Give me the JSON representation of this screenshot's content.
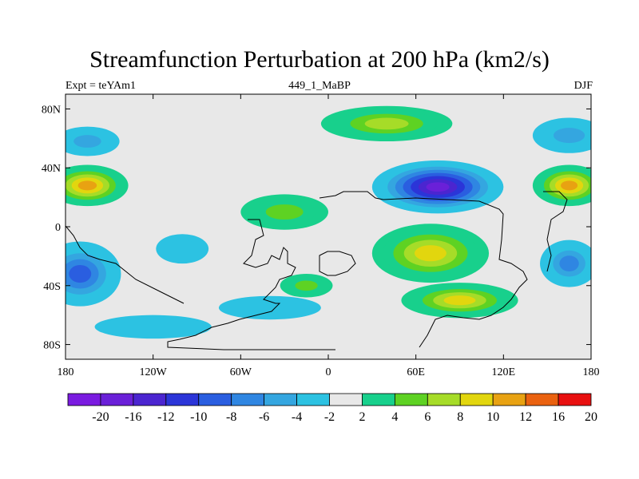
{
  "title": "Streamfunction Perturbation at 200 hPa (km2/s)",
  "subtitle": {
    "left": "Expt = teYAm1",
    "center": "449_1_MaBP",
    "right": "DJF"
  },
  "map": {
    "lon_range": [
      -180,
      180
    ],
    "lat_range": [
      -90,
      90
    ],
    "x_ticks": [
      {
        "lon": -180,
        "label": "180"
      },
      {
        "lon": -120,
        "label": "120W"
      },
      {
        "lon": -60,
        "label": "60W"
      },
      {
        "lon": 0,
        "label": "0"
      },
      {
        "lon": 60,
        "label": "60E"
      },
      {
        "lon": 120,
        "label": "120E"
      },
      {
        "lon": 180,
        "label": "180"
      }
    ],
    "y_ticks": [
      {
        "lat": 80,
        "label": "80N"
      },
      {
        "lat": 40,
        "label": "40N"
      },
      {
        "lat": 0,
        "label": "0"
      },
      {
        "lat": -40,
        "label": "40S"
      },
      {
        "lat": -80,
        "label": "80S"
      }
    ],
    "background_color": "#e8e8e8"
  },
  "colorbar": {
    "labels": [
      "-20",
      "-16",
      "-12",
      "-10",
      "-8",
      "-6",
      "-4",
      "-2",
      "2",
      "4",
      "6",
      "8",
      "10",
      "12",
      "16",
      "20"
    ],
    "colors": [
      "#7a1be0",
      "#6a20d8",
      "#4b25d0",
      "#2b35d8",
      "#2a5ee0",
      "#2f86e2",
      "#34a6e0",
      "#2cc2e2",
      "#e8e8e8",
      "#18d08c",
      "#5ed223",
      "#a6dc28",
      "#e2d60e",
      "#e8a212",
      "#ea6210",
      "#e81010"
    ]
  },
  "field_blobs": [
    {
      "lon": -165,
      "lat": 58,
      "rx": 22,
      "ry": 10,
      "sign": -1,
      "level": 6
    },
    {
      "lon": -165,
      "lat": 28,
      "rx": 28,
      "ry": 14,
      "sign": 1,
      "level": 12
    },
    {
      "lon": -170,
      "lat": -32,
      "rx": 28,
      "ry": 22,
      "sign": -1,
      "level": 10
    },
    {
      "lon": -100,
      "lat": -15,
      "rx": 18,
      "ry": 10,
      "sign": -1,
      "level": 4
    },
    {
      "lon": -30,
      "lat": 10,
      "rx": 30,
      "ry": 12,
      "sign": 1,
      "level": 6
    },
    {
      "lon": -40,
      "lat": -55,
      "rx": 35,
      "ry": 8,
      "sign": -1,
      "level": 4
    },
    {
      "lon": 40,
      "lat": 70,
      "rx": 45,
      "ry": 12,
      "sign": 1,
      "level": 8
    },
    {
      "lon": 75,
      "lat": 27,
      "rx": 45,
      "ry": 18,
      "sign": -1,
      "level": 20
    },
    {
      "lon": 70,
      "lat": -18,
      "rx": 40,
      "ry": 20,
      "sign": 1,
      "level": 10
    },
    {
      "lon": 90,
      "lat": -50,
      "rx": 40,
      "ry": 12,
      "sign": 1,
      "level": 10
    },
    {
      "lon": -15,
      "lat": -40,
      "rx": 18,
      "ry": 8,
      "sign": 1,
      "level": 6
    },
    {
      "lon": 165,
      "lat": 62,
      "rx": 25,
      "ry": 12,
      "sign": -1,
      "level": 6
    },
    {
      "lon": 165,
      "lat": 28,
      "rx": 25,
      "ry": 14,
      "sign": 1,
      "level": 12
    },
    {
      "lon": 165,
      "lat": -25,
      "rx": 20,
      "ry": 16,
      "sign": -1,
      "level": 8
    },
    {
      "lon": -120,
      "lat": -68,
      "rx": 40,
      "ry": 8,
      "sign": -1,
      "level": 4
    }
  ]
}
